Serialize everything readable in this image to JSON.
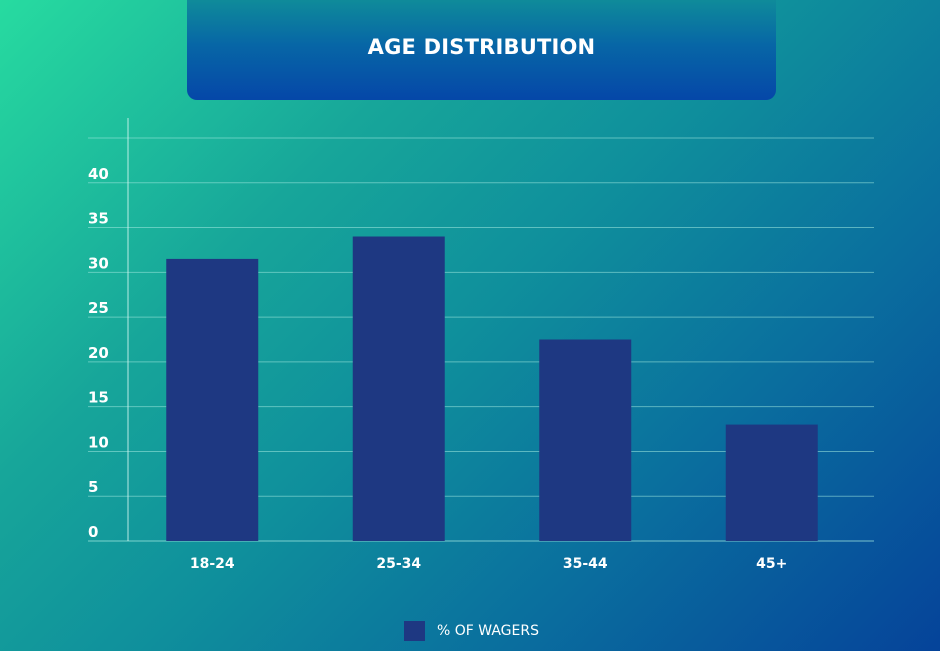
{
  "colors": {
    "bar": "#1e3882",
    "gridline": "#9fe7df",
    "axis": "#d6f7f2",
    "text": "#ffffff"
  },
  "chart_data": {
    "type": "bar",
    "title": "AGE DISTRIBUTION",
    "categories": [
      "18-24",
      "25-34",
      "35-44",
      "45+"
    ],
    "series": [
      {
        "name": "% OF WAGERS",
        "values": [
          31.5,
          34,
          22.5,
          13
        ]
      }
    ],
    "yticks": [
      0,
      5,
      10,
      15,
      20,
      25,
      30,
      35,
      40
    ],
    "ylim": [
      0,
      45
    ],
    "grid": true,
    "legend": "bottom-center",
    "xlabel": "",
    "ylabel": ""
  }
}
